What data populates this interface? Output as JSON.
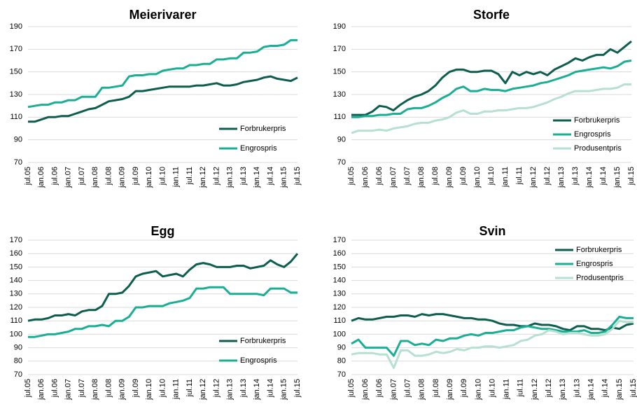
{
  "chart_data": [
    {
      "type": "line",
      "title": "Meierivarer",
      "legend": "lower right",
      "categories": [
        "jul.05",
        null,
        "jan.06",
        null,
        "jul.06",
        null,
        "jan.07",
        null,
        "jul.07",
        null,
        "jan.08",
        null,
        "jul.08",
        null,
        "jan.09",
        null,
        "jul.09",
        null,
        "jan.10",
        null,
        "jul.10",
        null,
        "jan.11",
        null,
        "jul.11",
        null,
        "jan.12",
        null,
        "jul.12",
        null,
        "jan.13",
        null,
        "jul.13",
        null,
        "jan.14",
        null,
        "jul.14",
        null,
        "jan.15",
        null,
        "jul.15"
      ],
      "ylim": [
        70,
        190
      ],
      "yticks": [
        70,
        90,
        110,
        130,
        150,
        170,
        190
      ],
      "grid": true,
      "series": [
        {
          "name": "Forbrukerpris",
          "color": "#0d5e4e",
          "values": [
            106,
            106,
            108,
            110,
            110,
            111,
            111,
            113,
            115,
            117,
            118,
            121,
            124,
            125,
            126,
            128,
            133,
            133,
            134,
            135,
            136,
            137,
            137,
            137,
            137,
            138,
            138,
            139,
            140,
            138,
            138,
            139,
            141,
            142,
            143,
            145,
            146,
            144,
            143,
            142,
            145
          ]
        },
        {
          "name": "Engrospris",
          "color": "#1aae94",
          "values": [
            119,
            120,
            121,
            121,
            123,
            123,
            125,
            125,
            128,
            128,
            128,
            136,
            136,
            137,
            138,
            146,
            147,
            147,
            148,
            148,
            151,
            152,
            153,
            153,
            156,
            156,
            157,
            157,
            161,
            161,
            162,
            162,
            167,
            167,
            168,
            172,
            173,
            173,
            174,
            178,
            178
          ]
        }
      ]
    },
    {
      "type": "line",
      "title": "Storfe",
      "legend": "lower right",
      "categories": [
        "jul.05",
        null,
        "jan.06",
        null,
        "jul.06",
        null,
        "jan.07",
        null,
        "jul.07",
        null,
        "jan.08",
        null,
        "jul.08",
        null,
        "jan.09",
        null,
        "jul.09",
        null,
        "jan.10",
        null,
        "jul.10",
        null,
        "jan.11",
        null,
        "jul.11",
        null,
        "jan.12",
        null,
        "jul.12",
        null,
        "jan.13",
        null,
        "jul.13",
        null,
        "jan.14",
        null,
        "jul.14",
        null,
        "jan.15",
        null,
        "jul.15"
      ],
      "ylim": [
        70,
        190
      ],
      "yticks": [
        70,
        90,
        110,
        130,
        150,
        170,
        190
      ],
      "grid": true,
      "series": [
        {
          "name": "Forbrukerpris",
          "color": "#0d5e4e",
          "values": [
            112,
            112,
            112,
            115,
            120,
            119,
            116,
            121,
            125,
            128,
            130,
            133,
            138,
            145,
            150,
            152,
            152,
            150,
            150,
            151,
            151,
            148,
            140,
            150,
            147,
            150,
            148,
            150,
            147,
            152,
            155,
            158,
            162,
            160,
            163,
            165,
            165,
            170,
            167,
            172,
            177
          ]
        },
        {
          "name": "Engrospris",
          "color": "#1aae94",
          "values": [
            110,
            110,
            111,
            111,
            112,
            112,
            113,
            113,
            117,
            118,
            118,
            120,
            123,
            127,
            130,
            135,
            137,
            133,
            133,
            135,
            134,
            134,
            133,
            135,
            136,
            137,
            138,
            140,
            141,
            143,
            145,
            147,
            150,
            151,
            152,
            153,
            154,
            153,
            155,
            159,
            160
          ]
        },
        {
          "name": "Produsentpris",
          "color": "#b6e0cf",
          "values": [
            96,
            98,
            98,
            98,
            99,
            98,
            100,
            101,
            102,
            104,
            105,
            105,
            107,
            108,
            110,
            114,
            116,
            113,
            113,
            115,
            115,
            116,
            116,
            117,
            118,
            118,
            119,
            121,
            123,
            126,
            128,
            131,
            133,
            133,
            133,
            134,
            135,
            135,
            136,
            139,
            139
          ]
        }
      ]
    },
    {
      "type": "line",
      "title": "Egg",
      "legend": "lower right",
      "categories": [
        "jul.05",
        null,
        "jan.06",
        null,
        "jul.06",
        null,
        "jan.07",
        null,
        "jul.07",
        null,
        "jan.08",
        null,
        "jul.08",
        null,
        "jan.09",
        null,
        "jul.09",
        null,
        "jan.10",
        null,
        "jul.10",
        null,
        "jan.11",
        null,
        "jul.11",
        null,
        "jan.12",
        null,
        "jul.12",
        null,
        "jan.13",
        null,
        "jul.13",
        null,
        "jan.14",
        null,
        "jul.14",
        null,
        "jan.15",
        null,
        "jul.15"
      ],
      "ylim": [
        70,
        170
      ],
      "yticks": [
        70,
        80,
        90,
        100,
        110,
        120,
        130,
        140,
        150,
        160,
        170
      ],
      "grid": true,
      "series": [
        {
          "name": "Forbrukerpris",
          "color": "#0d5e4e",
          "values": [
            110,
            111,
            111,
            112,
            114,
            114,
            115,
            114,
            117,
            118,
            118,
            121,
            130,
            130,
            131,
            136,
            143,
            145,
            146,
            147,
            143,
            144,
            145,
            143,
            148,
            152,
            153,
            152,
            150,
            150,
            150,
            151,
            151,
            149,
            150,
            151,
            155,
            152,
            150,
            154,
            160
          ]
        },
        {
          "name": "Engrospris",
          "color": "#1aae94",
          "values": [
            98,
            98,
            99,
            100,
            100,
            101,
            102,
            104,
            104,
            106,
            106,
            107,
            106,
            110,
            110,
            113,
            120,
            120,
            121,
            121,
            121,
            123,
            124,
            125,
            127,
            134,
            134,
            135,
            135,
            135,
            130,
            130,
            130,
            130,
            130,
            129,
            134,
            134,
            134,
            131,
            131
          ]
        }
      ]
    },
    {
      "type": "line",
      "title": "Svin",
      "legend": "upper right",
      "categories": [
        "jul.05",
        null,
        "jan.06",
        null,
        "jul.06",
        null,
        "jan.07",
        null,
        "jul.07",
        null,
        "jan.08",
        null,
        "jul.08",
        null,
        "jan.09",
        null,
        "jul.09",
        null,
        "jan.10",
        null,
        "jul.10",
        null,
        "jan.11",
        null,
        "jul.11",
        null,
        "jan.12",
        null,
        "jul.12",
        null,
        "jan.13",
        null,
        "jul.13",
        null,
        "jan.14",
        null,
        "jul.14",
        null,
        "jan.15",
        null,
        "jul.15"
      ],
      "ylim": [
        70,
        170
      ],
      "yticks": [
        70,
        80,
        90,
        100,
        110,
        120,
        130,
        140,
        150,
        160,
        170
      ],
      "grid": true,
      "series": [
        {
          "name": "Forbrukerpris",
          "color": "#0d5e4e",
          "values": [
            110,
            112,
            111,
            111,
            112,
            113,
            113,
            114,
            114,
            113,
            115,
            114,
            115,
            115,
            114,
            113,
            112,
            112,
            111,
            111,
            110,
            108,
            107,
            107,
            106,
            106,
            108,
            107,
            107,
            106,
            104,
            103,
            106,
            106,
            104,
            104,
            103,
            105,
            104,
            107,
            108
          ]
        },
        {
          "name": "Engrospris",
          "color": "#1aae94",
          "values": [
            93,
            96,
            90,
            90,
            90,
            90,
            84,
            95,
            95,
            92,
            93,
            92,
            96,
            95,
            97,
            97,
            99,
            100,
            99,
            101,
            101,
            102,
            103,
            103,
            105,
            106,
            105,
            104,
            104,
            103,
            102,
            102,
            102,
            103,
            101,
            101,
            102,
            107,
            113,
            112,
            112
          ]
        },
        {
          "name": "Produsentpris",
          "color": "#b6e0cf",
          "values": [
            85,
            86,
            86,
            86,
            85,
            85,
            75,
            88,
            88,
            84,
            84,
            85,
            87,
            86,
            87,
            89,
            88,
            90,
            90,
            91,
            91,
            90,
            91,
            92,
            95,
            96,
            99,
            100,
            103,
            102,
            100,
            101,
            101,
            100,
            99,
            99,
            100,
            104,
            110,
            109,
            109
          ]
        }
      ]
    }
  ]
}
